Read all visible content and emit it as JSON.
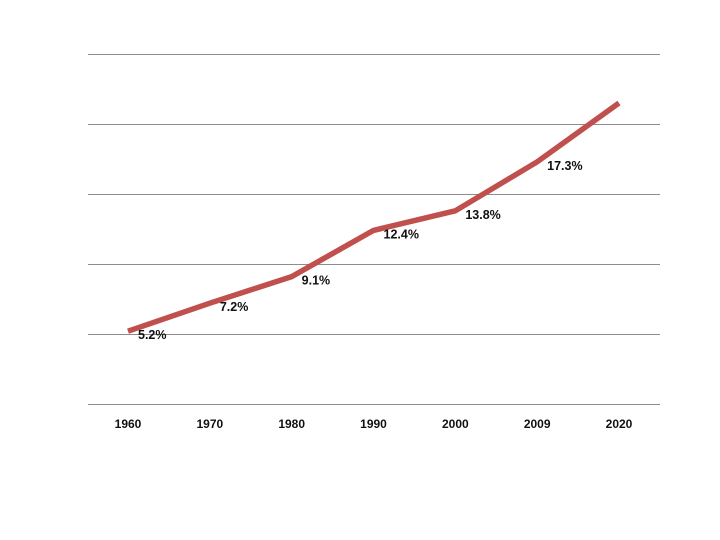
{
  "chart_data": {
    "type": "line",
    "title": "",
    "xlabel": "",
    "ylabel": "",
    "categories": [
      "1960",
      "1970",
      "1980",
      "1990",
      "2000",
      "2009",
      "2020"
    ],
    "series": [
      {
        "name": "",
        "values": [
          5.2,
          7.2,
          9.1,
          12.4,
          13.8,
          17.3,
          21.5
        ],
        "labels": [
          "5.2%",
          "7.2%",
          "9.1%",
          "12.4%",
          "13.8%",
          "17.3%",
          ""
        ]
      }
    ],
    "ylim": [
      0,
      25
    ],
    "ytick_step": 5,
    "grid": true,
    "line_color": "#c0504d"
  }
}
